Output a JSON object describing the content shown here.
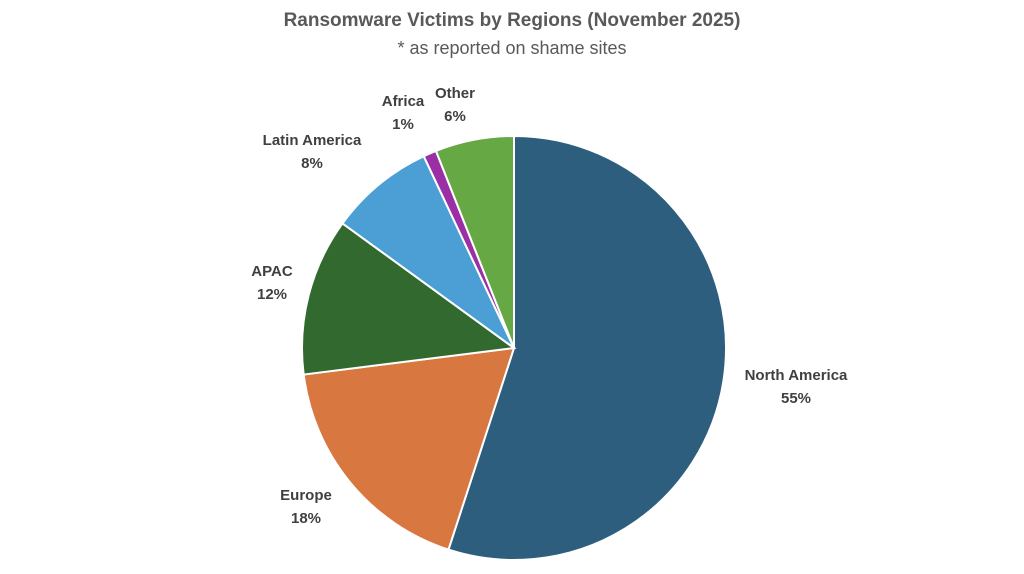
{
  "chart_data": {
    "type": "pie",
    "title": "Ransomware Victims by Regions (November 2025)",
    "subtitle": "* as reported on shame sites",
    "unit": "%",
    "slices": [
      {
        "label": "North America",
        "value": 55,
        "value_label": "55%",
        "color": "#2e5e7e"
      },
      {
        "label": "Europe",
        "value": 18,
        "value_label": "18%",
        "color": "#d87840"
      },
      {
        "label": "APAC",
        "value": 12,
        "value_label": "12%",
        "color": "#32692e"
      },
      {
        "label": "Latin America",
        "value": 8,
        "value_label": "8%",
        "color": "#4b9fd5"
      },
      {
        "label": "Africa",
        "value": 1,
        "value_label": "1%",
        "color": "#9a2fa6"
      },
      {
        "label": "Other",
        "value": 6,
        "value_label": "6%",
        "color": "#66a843"
      }
    ],
    "start_angle": "12 o'clock",
    "direction": "clockwise",
    "legend": "none (category labels outside slices)"
  }
}
